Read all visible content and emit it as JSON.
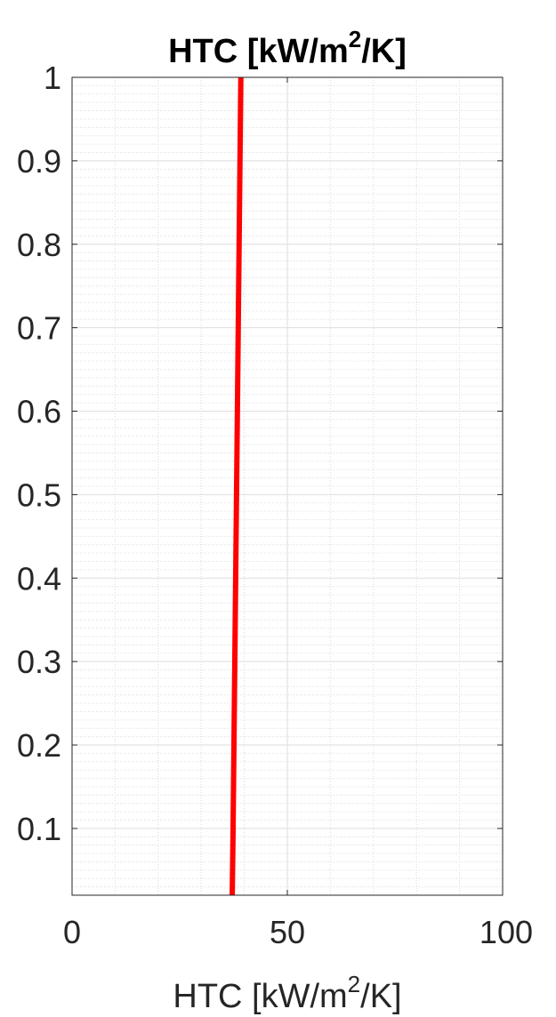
{
  "chart_data": {
    "type": "line",
    "title": "HTC [kW/m2/K]",
    "title_parts": {
      "before": "HTC [kW/m",
      "sup": "2",
      "after": "/K]"
    },
    "xlabel": "HTC [kW/m2/K]",
    "xlabel_parts": {
      "before": "HTC [kW/m",
      "sup": "2",
      "after": "/K]"
    },
    "ylabel": "",
    "xlim": [
      0,
      100
    ],
    "ylim": [
      0.02,
      1
    ],
    "xticks": [
      0,
      50,
      100
    ],
    "xtick_labels": [
      "0",
      "50",
      "100"
    ],
    "yticks": [
      0.1,
      0.2,
      0.3,
      0.4,
      0.5,
      0.6,
      0.7,
      0.8,
      0.9,
      1
    ],
    "ytick_labels": [
      "0.1",
      "0.2",
      "0.3",
      "0.4",
      "0.5",
      "0.6",
      "0.7",
      "0.8",
      "0.9",
      "1"
    ],
    "grid": true,
    "minor_grid": true,
    "series": [
      {
        "color": "#ff0000",
        "x": [
          37.2,
          37.4,
          37.6,
          37.8,
          38.0,
          38.2,
          38.4,
          38.6,
          38.8,
          39.0,
          39.2
        ],
        "y": [
          0.02,
          0.1,
          0.2,
          0.3,
          0.4,
          0.5,
          0.6,
          0.7,
          0.8,
          0.9,
          1.0
        ]
      }
    ]
  }
}
